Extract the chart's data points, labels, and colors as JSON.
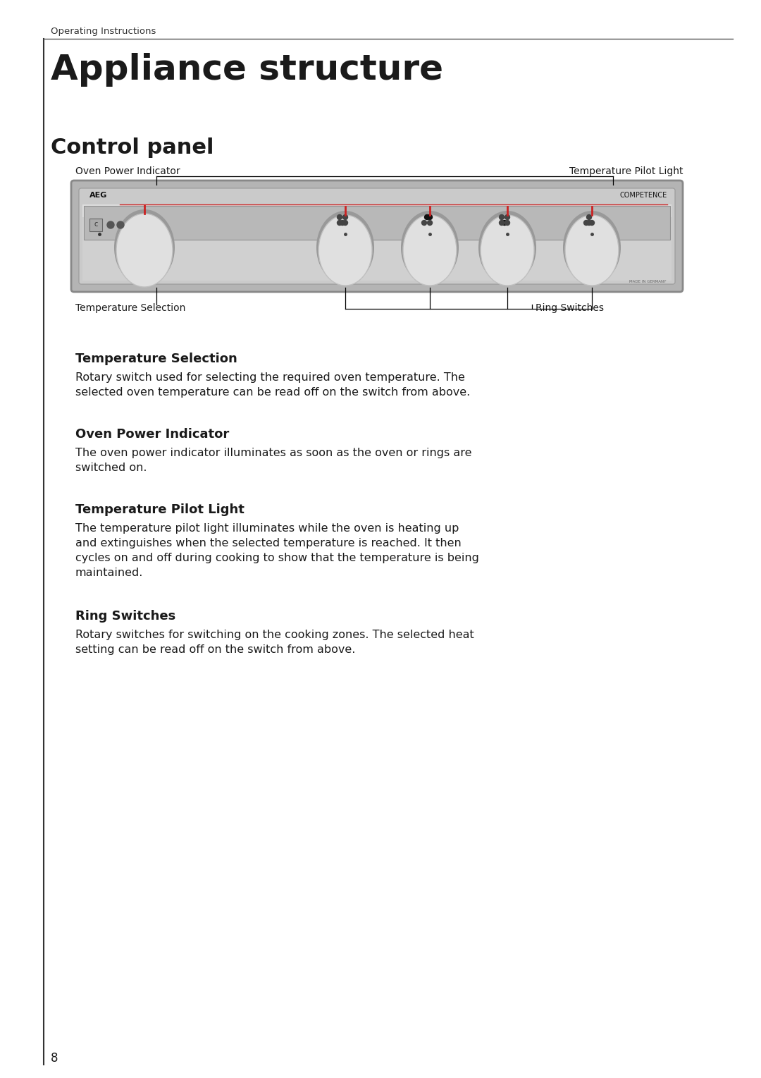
{
  "header_text": "Operating Instructions",
  "title": "Appliance structure",
  "subtitle": "Control panel",
  "label_oven_power": "Oven Power Indicator",
  "label_temp_pilot": "Temperature Pilot Light",
  "label_temp_sel": "Temperature Selection",
  "label_ring_sw": "Ring Switches",
  "section1_title": "Temperature Selection",
  "section1_body": "Rotary switch used for selecting the required oven temperature. The\nselected oven temperature can be read off on the switch from above.",
  "section2_title": "Oven Power Indicator",
  "section2_body": "The oven power indicator illuminates as soon as the oven or rings are\nswitched on.",
  "section3_title": "Temperature Pilot Light",
  "section3_body": "The temperature pilot light illuminates while the oven is heating up\nand extinguishes when the selected temperature is reached. It then\ncycles on and off during cooking to show that the temperature is being\nmaintained.",
  "section4_title": "Ring Switches",
  "section4_body": "Rotary switches for switching on the cooking zones. The selected heat\nsetting can be read off on the switch from above.",
  "page_number": "8",
  "bg_color": "#ffffff",
  "text_color": "#1a1a1a",
  "panel_color": "#c0c0c0",
  "header_line_color": "#555555",
  "left_bar_color": "#333333"
}
